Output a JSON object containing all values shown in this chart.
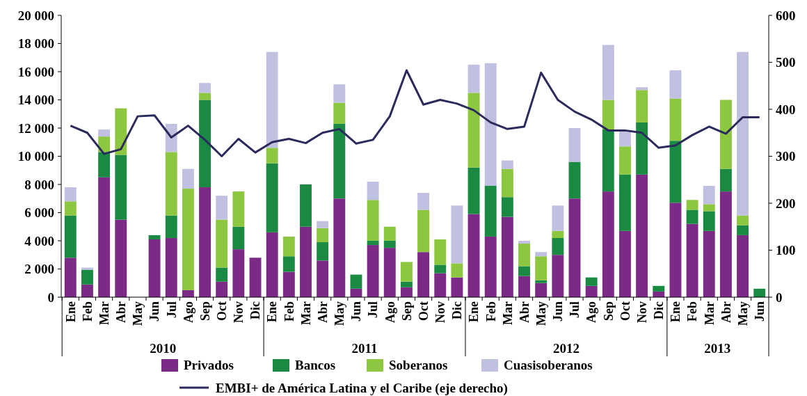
{
  "chart_data": {
    "type": "bar",
    "stacked": true,
    "categories": [
      "Ene",
      "Feb",
      "Mar",
      "Abr",
      "May",
      "Jun",
      "Jul",
      "Ago",
      "Sep",
      "Oct",
      "Nov",
      "Dic",
      "Ene",
      "Feb",
      "Mar",
      "Abr",
      "May",
      "Jun",
      "Jul",
      "Ago",
      "Sep",
      "Oct",
      "Nov",
      "Dic",
      "Ene",
      "Feb",
      "Mar",
      "Abr",
      "May",
      "Jun",
      "Jul",
      "Ago",
      "Sep",
      "Oct",
      "Nov",
      "Dic",
      "Ene",
      "Feb",
      "Mar",
      "Abr",
      "May",
      "Jun"
    ],
    "series": [
      {
        "name": "Privados",
        "color": "#7b2a86",
        "values": [
          2800,
          900,
          8500,
          5500,
          0,
          4100,
          4200,
          500,
          7800,
          1100,
          3400,
          2800,
          4600,
          1800,
          5000,
          2600,
          7000,
          600,
          3700,
          3500,
          700,
          3200,
          1700,
          1400,
          5900,
          4300,
          5700,
          1500,
          1000,
          3000,
          7000,
          800,
          7500,
          4700,
          8700,
          400,
          6700,
          5200,
          4700,
          7500,
          4400,
          0
        ]
      },
      {
        "name": "Bancos",
        "color": "#1a8a43",
        "values": [
          3000,
          1050,
          1800,
          4600,
          0,
          300,
          1600,
          0,
          6200,
          1000,
          1600,
          0,
          4900,
          1100,
          3000,
          1300,
          5300,
          1000,
          300,
          500,
          400,
          0,
          600,
          0,
          3300,
          3600,
          1400,
          700,
          200,
          1200,
          2600,
          600,
          4400,
          4000,
          3700,
          400,
          4400,
          1000,
          1400,
          1600,
          700,
          600
        ]
      },
      {
        "name": "Soberanos",
        "color": "#8dc63f",
        "values": [
          1000,
          0,
          1100,
          3300,
          0,
          0,
          4500,
          7200,
          500,
          3400,
          2500,
          0,
          1100,
          1400,
          0,
          1000,
          1500,
          0,
          2900,
          1000,
          1400,
          3000,
          1800,
          1000,
          5300,
          0,
          2000,
          1600,
          1700,
          500,
          0,
          0,
          2100,
          2000,
          2300,
          0,
          3000,
          700,
          500,
          4900,
          700,
          0
        ]
      },
      {
        "name": "Cuasisoberanos",
        "color": "#c0c0e0",
        "values": [
          1000,
          150,
          500,
          0,
          0,
          0,
          2000,
          1400,
          700,
          1700,
          0,
          0,
          6800,
          0,
          0,
          500,
          1300,
          0,
          1300,
          0,
          0,
          1200,
          0,
          4100,
          2000,
          8700,
          600,
          200,
          300,
          1800,
          2400,
          0,
          3900,
          1100,
          200,
          0,
          2000,
          0,
          1300,
          0,
          11600,
          0
        ]
      },
      {
        "name": "EMBI+ de América Latina y el Caribe (eje derecho)",
        "type": "line",
        "axis": "y2",
        "color": "#2b2a5c",
        "values": [
          365,
          350,
          305,
          315,
          385,
          387,
          340,
          365,
          335,
          300,
          337,
          308,
          330,
          337,
          328,
          350,
          358,
          327,
          335,
          385,
          483,
          410,
          420,
          412,
          398,
          372,
          358,
          363,
          478,
          420,
          395,
          378,
          355,
          355,
          350,
          318,
          323,
          345,
          363,
          348,
          383,
          383
        ]
      }
    ],
    "ylim": [
      0,
      20000
    ],
    "yticks": [
      {
        "value": 0,
        "label": "0"
      },
      {
        "value": 2000,
        "label": "2 000"
      },
      {
        "value": 4000,
        "label": "4 000"
      },
      {
        "value": 6000,
        "label": "6 000"
      },
      {
        "value": 8000,
        "label": "8 000"
      },
      {
        "value": 10000,
        "label": "10 000"
      },
      {
        "value": 12000,
        "label": "12 000"
      },
      {
        "value": 14000,
        "label": "14 000"
      },
      {
        "value": 16000,
        "label": "16 000"
      },
      {
        "value": 18000,
        "label": "18 000"
      },
      {
        "value": 20000,
        "label": "20 000"
      }
    ],
    "y2lim": [
      0,
      600
    ],
    "y2ticks": [
      0,
      100,
      200,
      300,
      400,
      500,
      600
    ],
    "annotations": [
      "2010",
      "2011",
      "2012",
      "2013"
    ],
    "legend": "bottom"
  }
}
